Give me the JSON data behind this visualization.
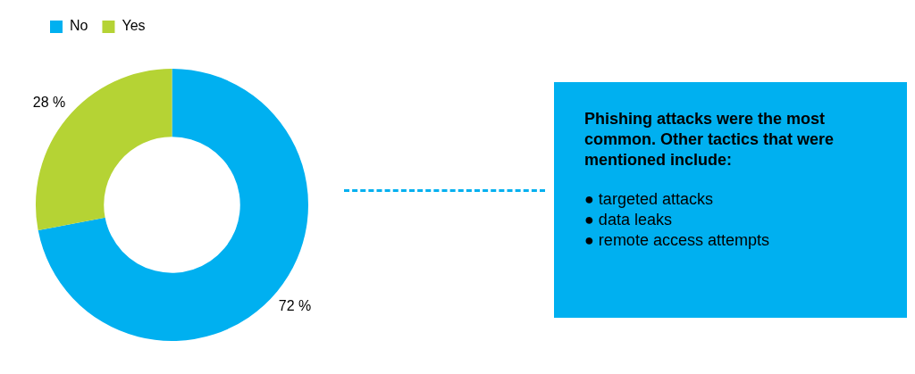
{
  "chart_data": {
    "type": "donut",
    "categories": [
      "No",
      "Yes"
    ],
    "values": [
      72,
      28
    ],
    "colors": [
      "#00b0f0",
      "#b5d334"
    ],
    "value_labels": [
      "72 %",
      "28 %"
    ],
    "legend": "top left",
    "annotations": [
      "Phishing attacks were the most common. Other tactics that were mentioned include:",
      "● targeted attacks",
      "● data leaks",
      "● remote access attempts"
    ]
  }
}
